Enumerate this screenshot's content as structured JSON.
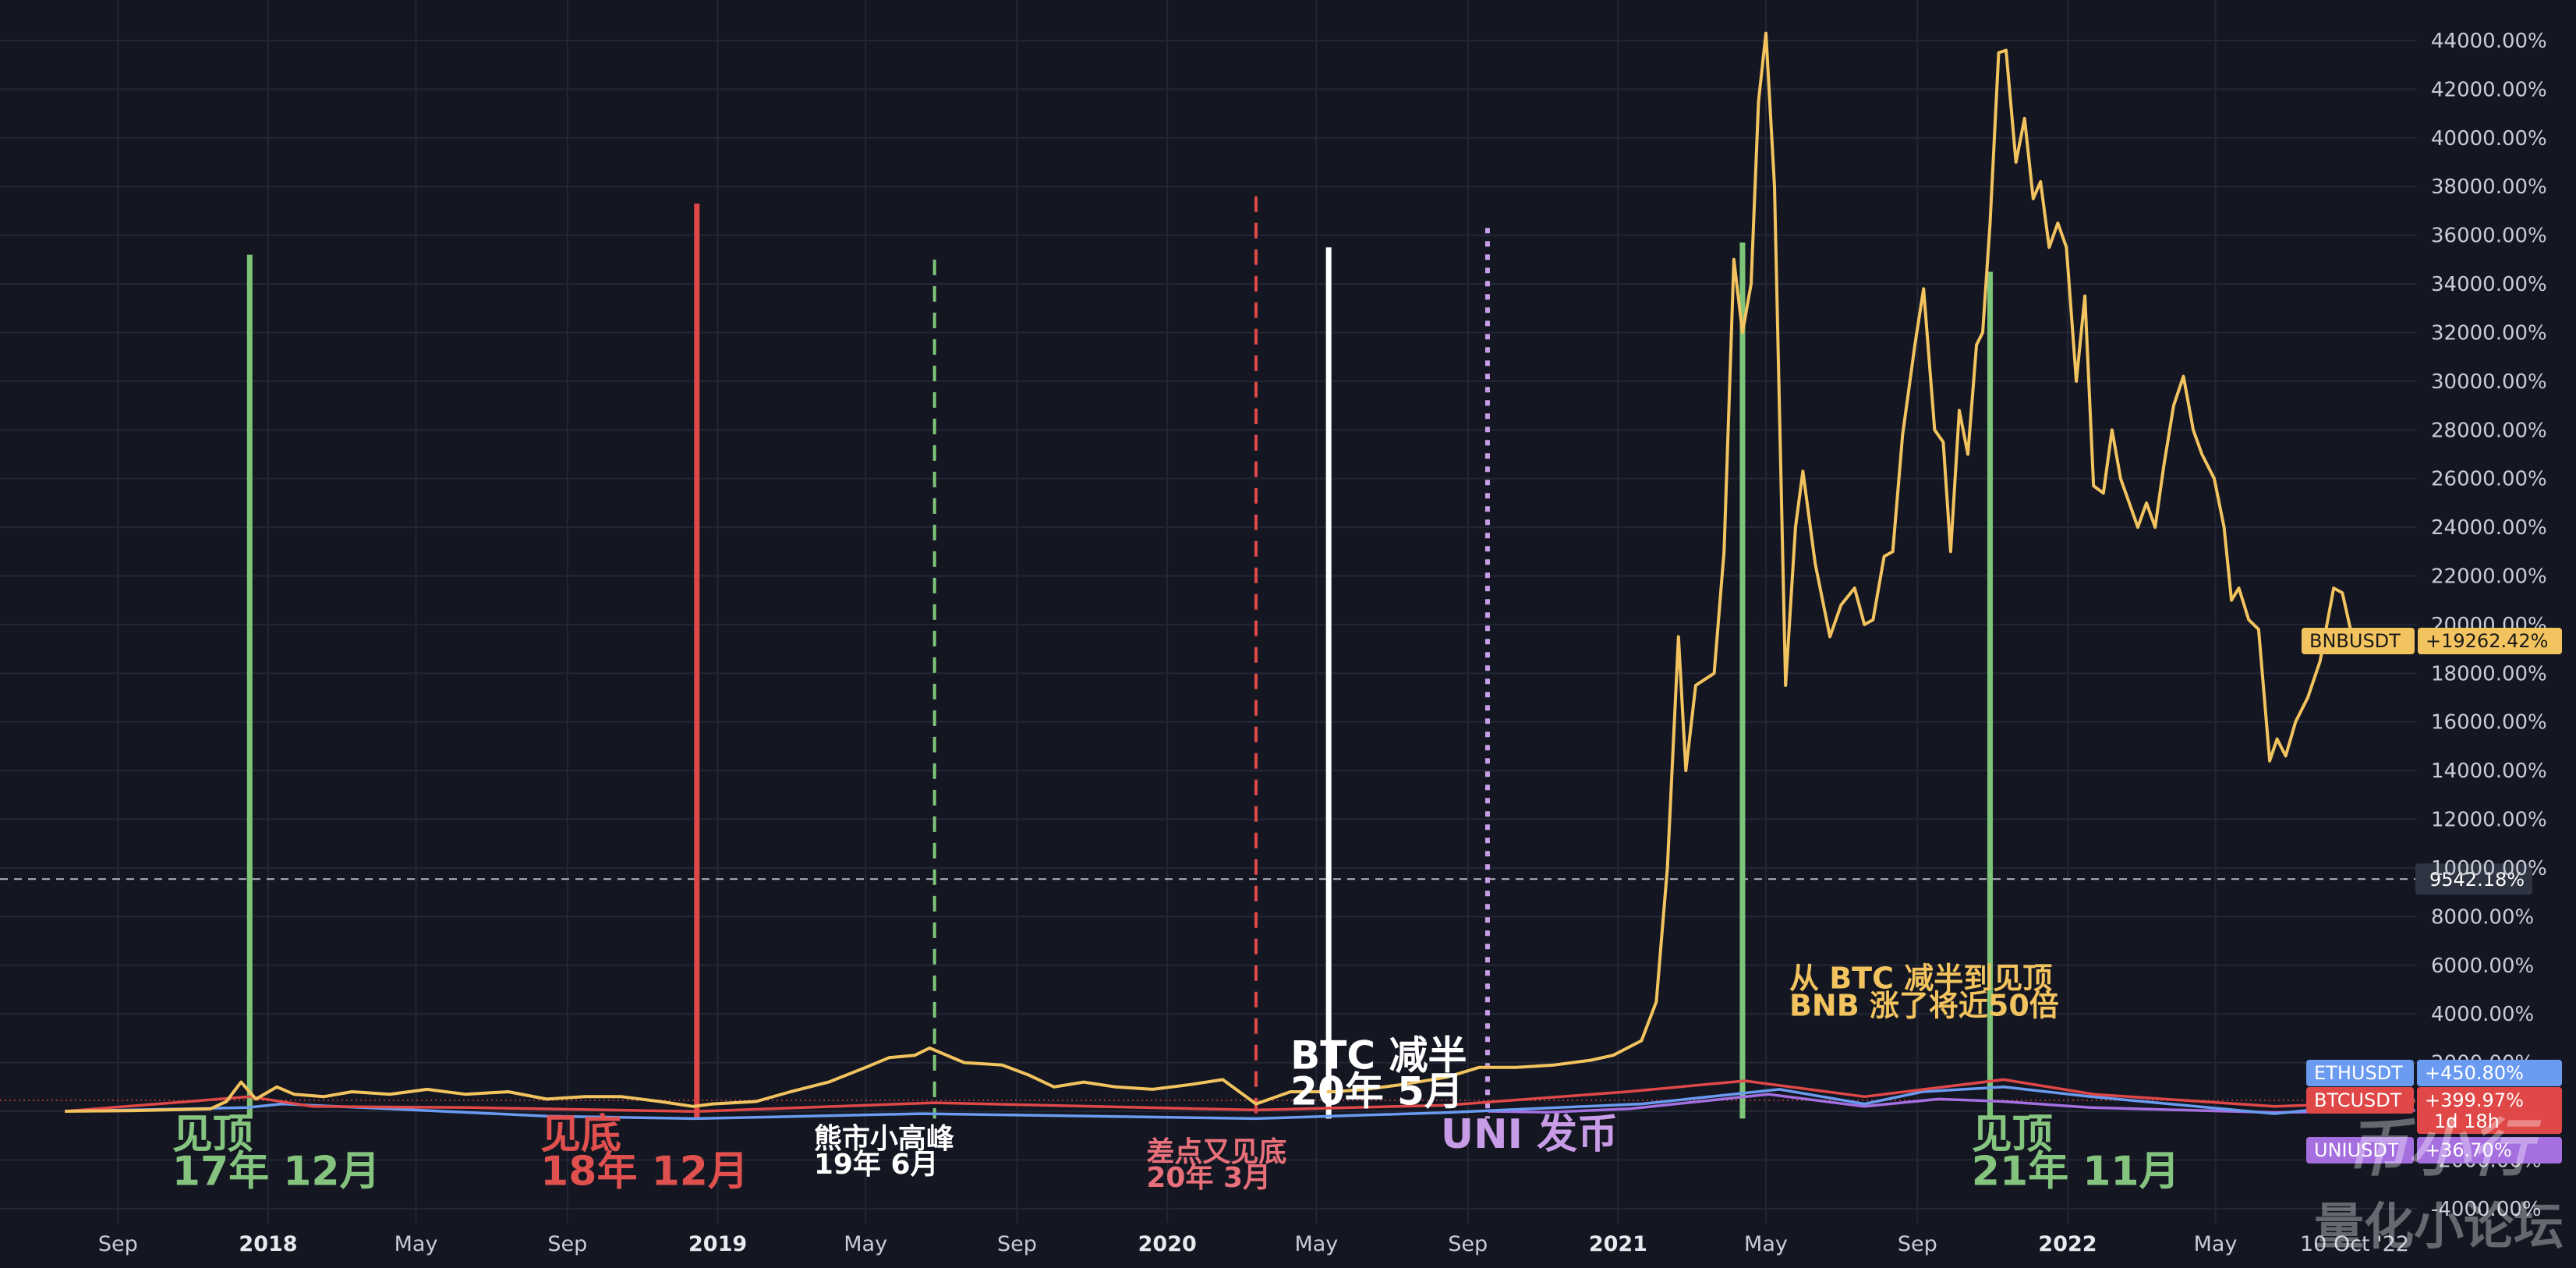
{
  "chart_data": {
    "type": "line",
    "title": "",
    "xlabel": "",
    "ylabel": "",
    "y_unit": "%",
    "ylim": [
      -4000,
      45000
    ],
    "xlim": [
      "2017-07-20",
      "2022-10-10"
    ],
    "grid": true,
    "y_ticks": [
      -4000,
      -2000,
      0,
      2000,
      4000,
      6000,
      8000,
      10000,
      12000,
      14000,
      16000,
      18000,
      20000,
      22000,
      24000,
      26000,
      28000,
      30000,
      32000,
      34000,
      36000,
      38000,
      40000,
      42000,
      44000
    ],
    "y_tick_labels": [
      "-4000.00%",
      "-2000.00%",
      "0.00%",
      "2000.00%",
      "4000.00%",
      "6000.00%",
      "8000.00%",
      "10000.00%",
      "12000.00%",
      "14000.00%",
      "16000.00%",
      "18000.00%",
      "20000.00%",
      "22000.00%",
      "24000.00%",
      "26000.00%",
      "28000.00%",
      "30000.00%",
      "32000.00%",
      "34000.00%",
      "36000.00%",
      "38000.00%",
      "40000.00%",
      "42000.00%",
      "44000.00%"
    ],
    "x_ticks": [
      {
        "date": "2017-09-01",
        "label": "Sep",
        "year": false
      },
      {
        "date": "2018-01-01",
        "label": "2018",
        "year": true
      },
      {
        "date": "2018-05-01",
        "label": "May",
        "year": false
      },
      {
        "date": "2018-09-01",
        "label": "Sep",
        "year": false
      },
      {
        "date": "2019-01-01",
        "label": "2019",
        "year": true
      },
      {
        "date": "2019-05-01",
        "label": "May",
        "year": false
      },
      {
        "date": "2019-09-01",
        "label": "Sep",
        "year": false
      },
      {
        "date": "2020-01-01",
        "label": "2020",
        "year": true
      },
      {
        "date": "2020-05-01",
        "label": "May",
        "year": false
      },
      {
        "date": "2020-09-01",
        "label": "Sep",
        "year": false
      },
      {
        "date": "2021-01-01",
        "label": "2021",
        "year": true
      },
      {
        "date": "2021-05-01",
        "label": "May",
        "year": false
      },
      {
        "date": "2021-09-01",
        "label": "Sep",
        "year": false
      },
      {
        "date": "2022-01-01",
        "label": "2022",
        "year": true
      },
      {
        "date": "2022-05-01",
        "label": "May",
        "year": false
      }
    ],
    "current_date_label": "10 Oct '22",
    "hline": {
      "y": 9542.18,
      "label": "9542.18%"
    },
    "series": [
      {
        "name": "BNBUSDT",
        "change_label": "+19262.42%",
        "color": "#f2c35e",
        "points": [
          [
            "2017-07-20",
            0
          ],
          [
            "2017-09-15",
            30
          ],
          [
            "2017-11-15",
            100
          ],
          [
            "2017-11-28",
            400
          ],
          [
            "2017-12-10",
            1200
          ],
          [
            "2017-12-22",
            500
          ],
          [
            "2018-01-08",
            1000
          ],
          [
            "2018-01-22",
            700
          ],
          [
            "2018-02-15",
            600
          ],
          [
            "2018-03-10",
            800
          ],
          [
            "2018-04-10",
            700
          ],
          [
            "2018-05-10",
            900
          ],
          [
            "2018-06-10",
            700
          ],
          [
            "2018-07-15",
            800
          ],
          [
            "2018-08-15",
            500
          ],
          [
            "2018-09-15",
            600
          ],
          [
            "2018-10-15",
            600
          ],
          [
            "2018-11-15",
            400
          ],
          [
            "2018-12-12",
            200
          ],
          [
            "2018-12-28",
            300
          ],
          [
            "2019-02-01",
            400
          ],
          [
            "2019-03-01",
            800
          ],
          [
            "2019-04-01",
            1200
          ],
          [
            "2019-05-01",
            1800
          ],
          [
            "2019-05-20",
            2200
          ],
          [
            "2019-06-10",
            2300
          ],
          [
            "2019-06-22",
            2600
          ],
          [
            "2019-07-20",
            2000
          ],
          [
            "2019-08-20",
            1900
          ],
          [
            "2019-09-10",
            1500
          ],
          [
            "2019-10-01",
            1000
          ],
          [
            "2019-10-25",
            1200
          ],
          [
            "2019-11-20",
            1000
          ],
          [
            "2019-12-20",
            900
          ],
          [
            "2020-01-20",
            1100
          ],
          [
            "2020-02-15",
            1300
          ],
          [
            "2020-03-13",
            300
          ],
          [
            "2020-04-10",
            800
          ],
          [
            "2020-05-15",
            800
          ],
          [
            "2020-06-10",
            900
          ],
          [
            "2020-07-10",
            1100
          ],
          [
            "2020-08-15",
            1400
          ],
          [
            "2020-09-10",
            1800
          ],
          [
            "2020-10-10",
            1800
          ],
          [
            "2020-11-10",
            1900
          ],
          [
            "2020-12-10",
            2100
          ],
          [
            "2020-12-28",
            2300
          ],
          [
            "2021-01-20",
            2900
          ],
          [
            "2021-02-01",
            4500
          ],
          [
            "2021-02-10",
            10000
          ],
          [
            "2021-02-19",
            19500
          ],
          [
            "2021-02-25",
            14000
          ],
          [
            "2021-03-05",
            17500
          ],
          [
            "2021-03-20",
            18000
          ],
          [
            "2021-03-28",
            23000
          ],
          [
            "2021-04-05",
            35000
          ],
          [
            "2021-04-12",
            32000
          ],
          [
            "2021-04-19",
            34000
          ],
          [
            "2021-04-25",
            41500
          ],
          [
            "2021-05-01",
            44300
          ],
          [
            "2021-05-08",
            38000
          ],
          [
            "2021-05-17",
            17500
          ],
          [
            "2021-05-25",
            24000
          ],
          [
            "2021-05-31",
            26300
          ],
          [
            "2021-06-10",
            22500
          ],
          [
            "2021-06-22",
            19500
          ],
          [
            "2021-07-01",
            20800
          ],
          [
            "2021-07-12",
            21500
          ],
          [
            "2021-07-20",
            20000
          ],
          [
            "2021-07-27",
            20200
          ],
          [
            "2021-08-05",
            22800
          ],
          [
            "2021-08-12",
            23000
          ],
          [
            "2021-08-20",
            27800
          ],
          [
            "2021-08-30",
            31500
          ],
          [
            "2021-09-06",
            33800
          ],
          [
            "2021-09-15",
            28000
          ],
          [
            "2021-09-22",
            27500
          ],
          [
            "2021-09-28",
            23000
          ],
          [
            "2021-10-05",
            28800
          ],
          [
            "2021-10-12",
            27000
          ],
          [
            "2021-10-19",
            31500
          ],
          [
            "2021-10-24",
            32000
          ],
          [
            "2021-10-30",
            36500
          ],
          [
            "2021-11-06",
            43500
          ],
          [
            "2021-11-12",
            43600
          ],
          [
            "2021-11-20",
            39000
          ],
          [
            "2021-11-27",
            40800
          ],
          [
            "2021-12-04",
            37500
          ],
          [
            "2021-12-10",
            38200
          ],
          [
            "2021-12-17",
            35500
          ],
          [
            "2021-12-24",
            36500
          ],
          [
            "2021-12-31",
            35500
          ],
          [
            "2022-01-08",
            30000
          ],
          [
            "2022-01-15",
            33500
          ],
          [
            "2022-01-22",
            25700
          ],
          [
            "2022-01-30",
            25400
          ],
          [
            "2022-02-06",
            28000
          ],
          [
            "2022-02-13",
            26000
          ],
          [
            "2022-02-20",
            25000
          ],
          [
            "2022-02-27",
            24000
          ],
          [
            "2022-03-06",
            25000
          ],
          [
            "2022-03-13",
            24000
          ],
          [
            "2022-03-20",
            26500
          ],
          [
            "2022-03-28",
            29000
          ],
          [
            "2022-04-05",
            30200
          ],
          [
            "2022-04-13",
            28000
          ],
          [
            "2022-04-20",
            27000
          ],
          [
            "2022-04-30",
            26000
          ],
          [
            "2022-05-08",
            24000
          ],
          [
            "2022-05-14",
            21000
          ],
          [
            "2022-05-20",
            21500
          ],
          [
            "2022-05-28",
            20200
          ],
          [
            "2022-06-05",
            19800
          ],
          [
            "2022-06-14",
            14400
          ],
          [
            "2022-06-20",
            15300
          ],
          [
            "2022-06-27",
            14600
          ],
          [
            "2022-07-05",
            16000
          ],
          [
            "2022-07-15",
            17000
          ],
          [
            "2022-07-25",
            18500
          ],
          [
            "2022-08-05",
            21500
          ],
          [
            "2022-08-12",
            21300
          ],
          [
            "2022-08-20",
            19500
          ],
          [
            "2022-08-28",
            19262
          ]
        ]
      },
      {
        "name": "ETHUSDT",
        "change_label": "+450.80%",
        "color": "#6b9bf0",
        "points": [
          [
            "2017-07-20",
            0
          ],
          [
            "2017-12-15",
            150
          ],
          [
            "2018-01-12",
            300
          ],
          [
            "2018-04-10",
            100
          ],
          [
            "2018-08-15",
            -200
          ],
          [
            "2018-12-15",
            -300
          ],
          [
            "2019-06-15",
            -100
          ],
          [
            "2020-03-13",
            -300
          ],
          [
            "2020-08-15",
            -50
          ],
          [
            "2021-01-20",
            300
          ],
          [
            "2021-05-12",
            900
          ],
          [
            "2021-07-20",
            300
          ],
          [
            "2021-09-05",
            800
          ],
          [
            "2021-11-10",
            1000
          ],
          [
            "2022-01-20",
            600
          ],
          [
            "2022-06-18",
            -100
          ],
          [
            "2022-08-15",
            200
          ],
          [
            "2022-10-10",
            450
          ]
        ]
      },
      {
        "name": "BTCUSDT",
        "change_label": "+399.97%",
        "sub_label": "1d 18h",
        "color": "#e04848",
        "points": [
          [
            "2017-07-20",
            0
          ],
          [
            "2017-12-17",
            600
          ],
          [
            "2018-02-06",
            200
          ],
          [
            "2018-06-15",
            150
          ],
          [
            "2018-12-15",
            -10
          ],
          [
            "2019-06-26",
            350
          ],
          [
            "2020-03-13",
            50
          ],
          [
            "2020-08-15",
            250
          ],
          [
            "2021-01-08",
            800
          ],
          [
            "2021-04-14",
            1250
          ],
          [
            "2021-07-20",
            600
          ],
          [
            "2021-11-10",
            1300
          ],
          [
            "2022-01-22",
            700
          ],
          [
            "2022-06-18",
            200
          ],
          [
            "2022-10-10",
            400
          ]
        ]
      },
      {
        "name": "UNIUSDT",
        "change_label": "+36.70%",
        "color": "#a56fe0",
        "points": [
          [
            "2020-09-17",
            0
          ],
          [
            "2020-11-05",
            -40
          ],
          [
            "2021-01-10",
            100
          ],
          [
            "2021-05-03",
            700
          ],
          [
            "2021-07-20",
            200
          ],
          [
            "2021-09-18",
            500
          ],
          [
            "2021-11-10",
            400
          ],
          [
            "2022-01-20",
            150
          ],
          [
            "2022-06-18",
            -50
          ],
          [
            "2022-10-10",
            36.7
          ]
        ]
      }
    ],
    "event_lines": [
      {
        "date": "2017-12-17",
        "y_top": 35200,
        "color": "#7ec478",
        "style": "solid"
      },
      {
        "date": "2018-12-15",
        "y_top": 37300,
        "color": "#e04848",
        "style": "solid"
      },
      {
        "date": "2019-06-26",
        "y_top": 35000,
        "color": "#7ec478",
        "style": "dashed"
      },
      {
        "date": "2020-03-13",
        "y_top": 37600,
        "color": "#e04848",
        "style": "dashed"
      },
      {
        "date": "2020-05-11",
        "y_top": 35500,
        "color": "#ffffff",
        "style": "solid"
      },
      {
        "date": "2020-09-17",
        "y_top": 36300,
        "color": "#c8a0e8",
        "style": "dotted"
      },
      {
        "date": "2021-04-12",
        "y_top": 35700,
        "color": "#7ec478",
        "style": "solid"
      },
      {
        "date": "2021-10-30",
        "y_top": 34500,
        "color": "#7ec478",
        "style": "solid"
      }
    ],
    "annotations": [
      {
        "lines": [
          "见顶",
          "17年 12月"
        ],
        "date": "2017-10-15",
        "y": -1500,
        "color": "#85c47f",
        "size": 52
      },
      {
        "lines": [
          "见底",
          "18年 12月"
        ],
        "date": "2018-08-10",
        "y": -1500,
        "color": "#e0504f",
        "size": 52
      },
      {
        "lines": [
          "熊市小高峰",
          "19年 6月"
        ],
        "date": "2019-03-20",
        "y": -1500,
        "color": "#ffffff",
        "size": 36
      },
      {
        "lines": [
          "BTC    减半",
          "20年   5月"
        ],
        "date": "2020-04-10",
        "y": 1750,
        "color": "#ffffff",
        "size": 50
      },
      {
        "lines": [
          "差点又见底",
          "20年 3月"
        ],
        "date": "2019-12-15",
        "y": -2050,
        "color": "#e8707a",
        "size": 36
      },
      {
        "lines": [
          "UNI   发币"
        ],
        "date": "2020-08-10",
        "y": -1500,
        "color": "#c89be6",
        "size": 52
      },
      {
        "lines": [
          "从 BTC 减半到见顶",
          "BNB 涨了将近50倍"
        ],
        "date": "2021-05-20",
        "y": 5050,
        "color": "#f2c35e",
        "size": 38
      },
      {
        "lines": [
          "见顶",
          "21年 11月"
        ],
        "date": "2021-10-15",
        "y": -1500,
        "color": "#85c47f",
        "size": 52
      }
    ],
    "watermark": [
      "币小行",
      "量化小论坛"
    ]
  }
}
